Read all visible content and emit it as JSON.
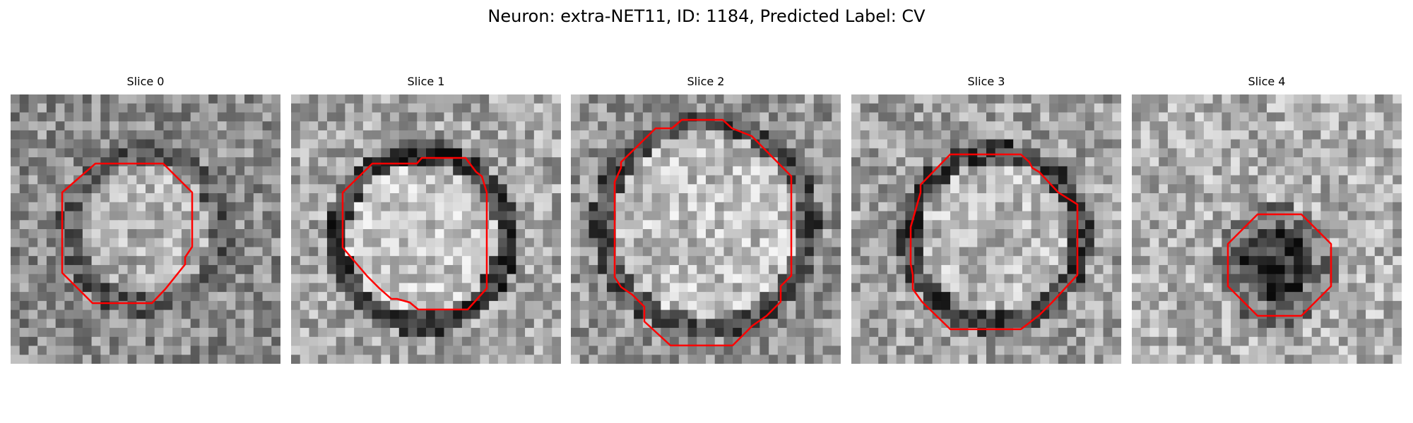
{
  "figure": {
    "title": "Neuron: extra-NET11, ID: 1184, Predicted Label: CV"
  },
  "panels": [
    {
      "title": "Slice 0"
    },
    {
      "title": "Slice 1"
    },
    {
      "title": "Slice 2"
    },
    {
      "title": "Slice 3"
    },
    {
      "title": "Slice 4"
    }
  ],
  "colors": {
    "contour": "#ff0000",
    "image_palette": "grayscale"
  }
}
